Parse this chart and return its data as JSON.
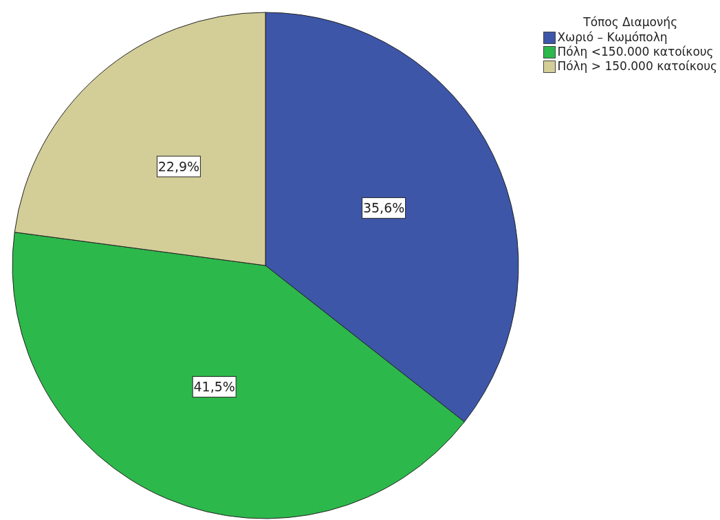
{
  "chart_data": {
    "type": "pie",
    "legend_title": "Τόπος Διαμονής",
    "categories": [
      "Χωριό – Κωμόπολη",
      "Πόλη <150.000 κατοίκους",
      "Πόλη > 150.000 κατοίκους"
    ],
    "values": [
      35.6,
      41.5,
      22.9
    ],
    "colors": [
      "#3d56a8",
      "#2db84b",
      "#d3cd98"
    ],
    "value_labels": [
      "35,6%",
      "41,5%",
      "22,9%"
    ],
    "legend": "top right"
  }
}
